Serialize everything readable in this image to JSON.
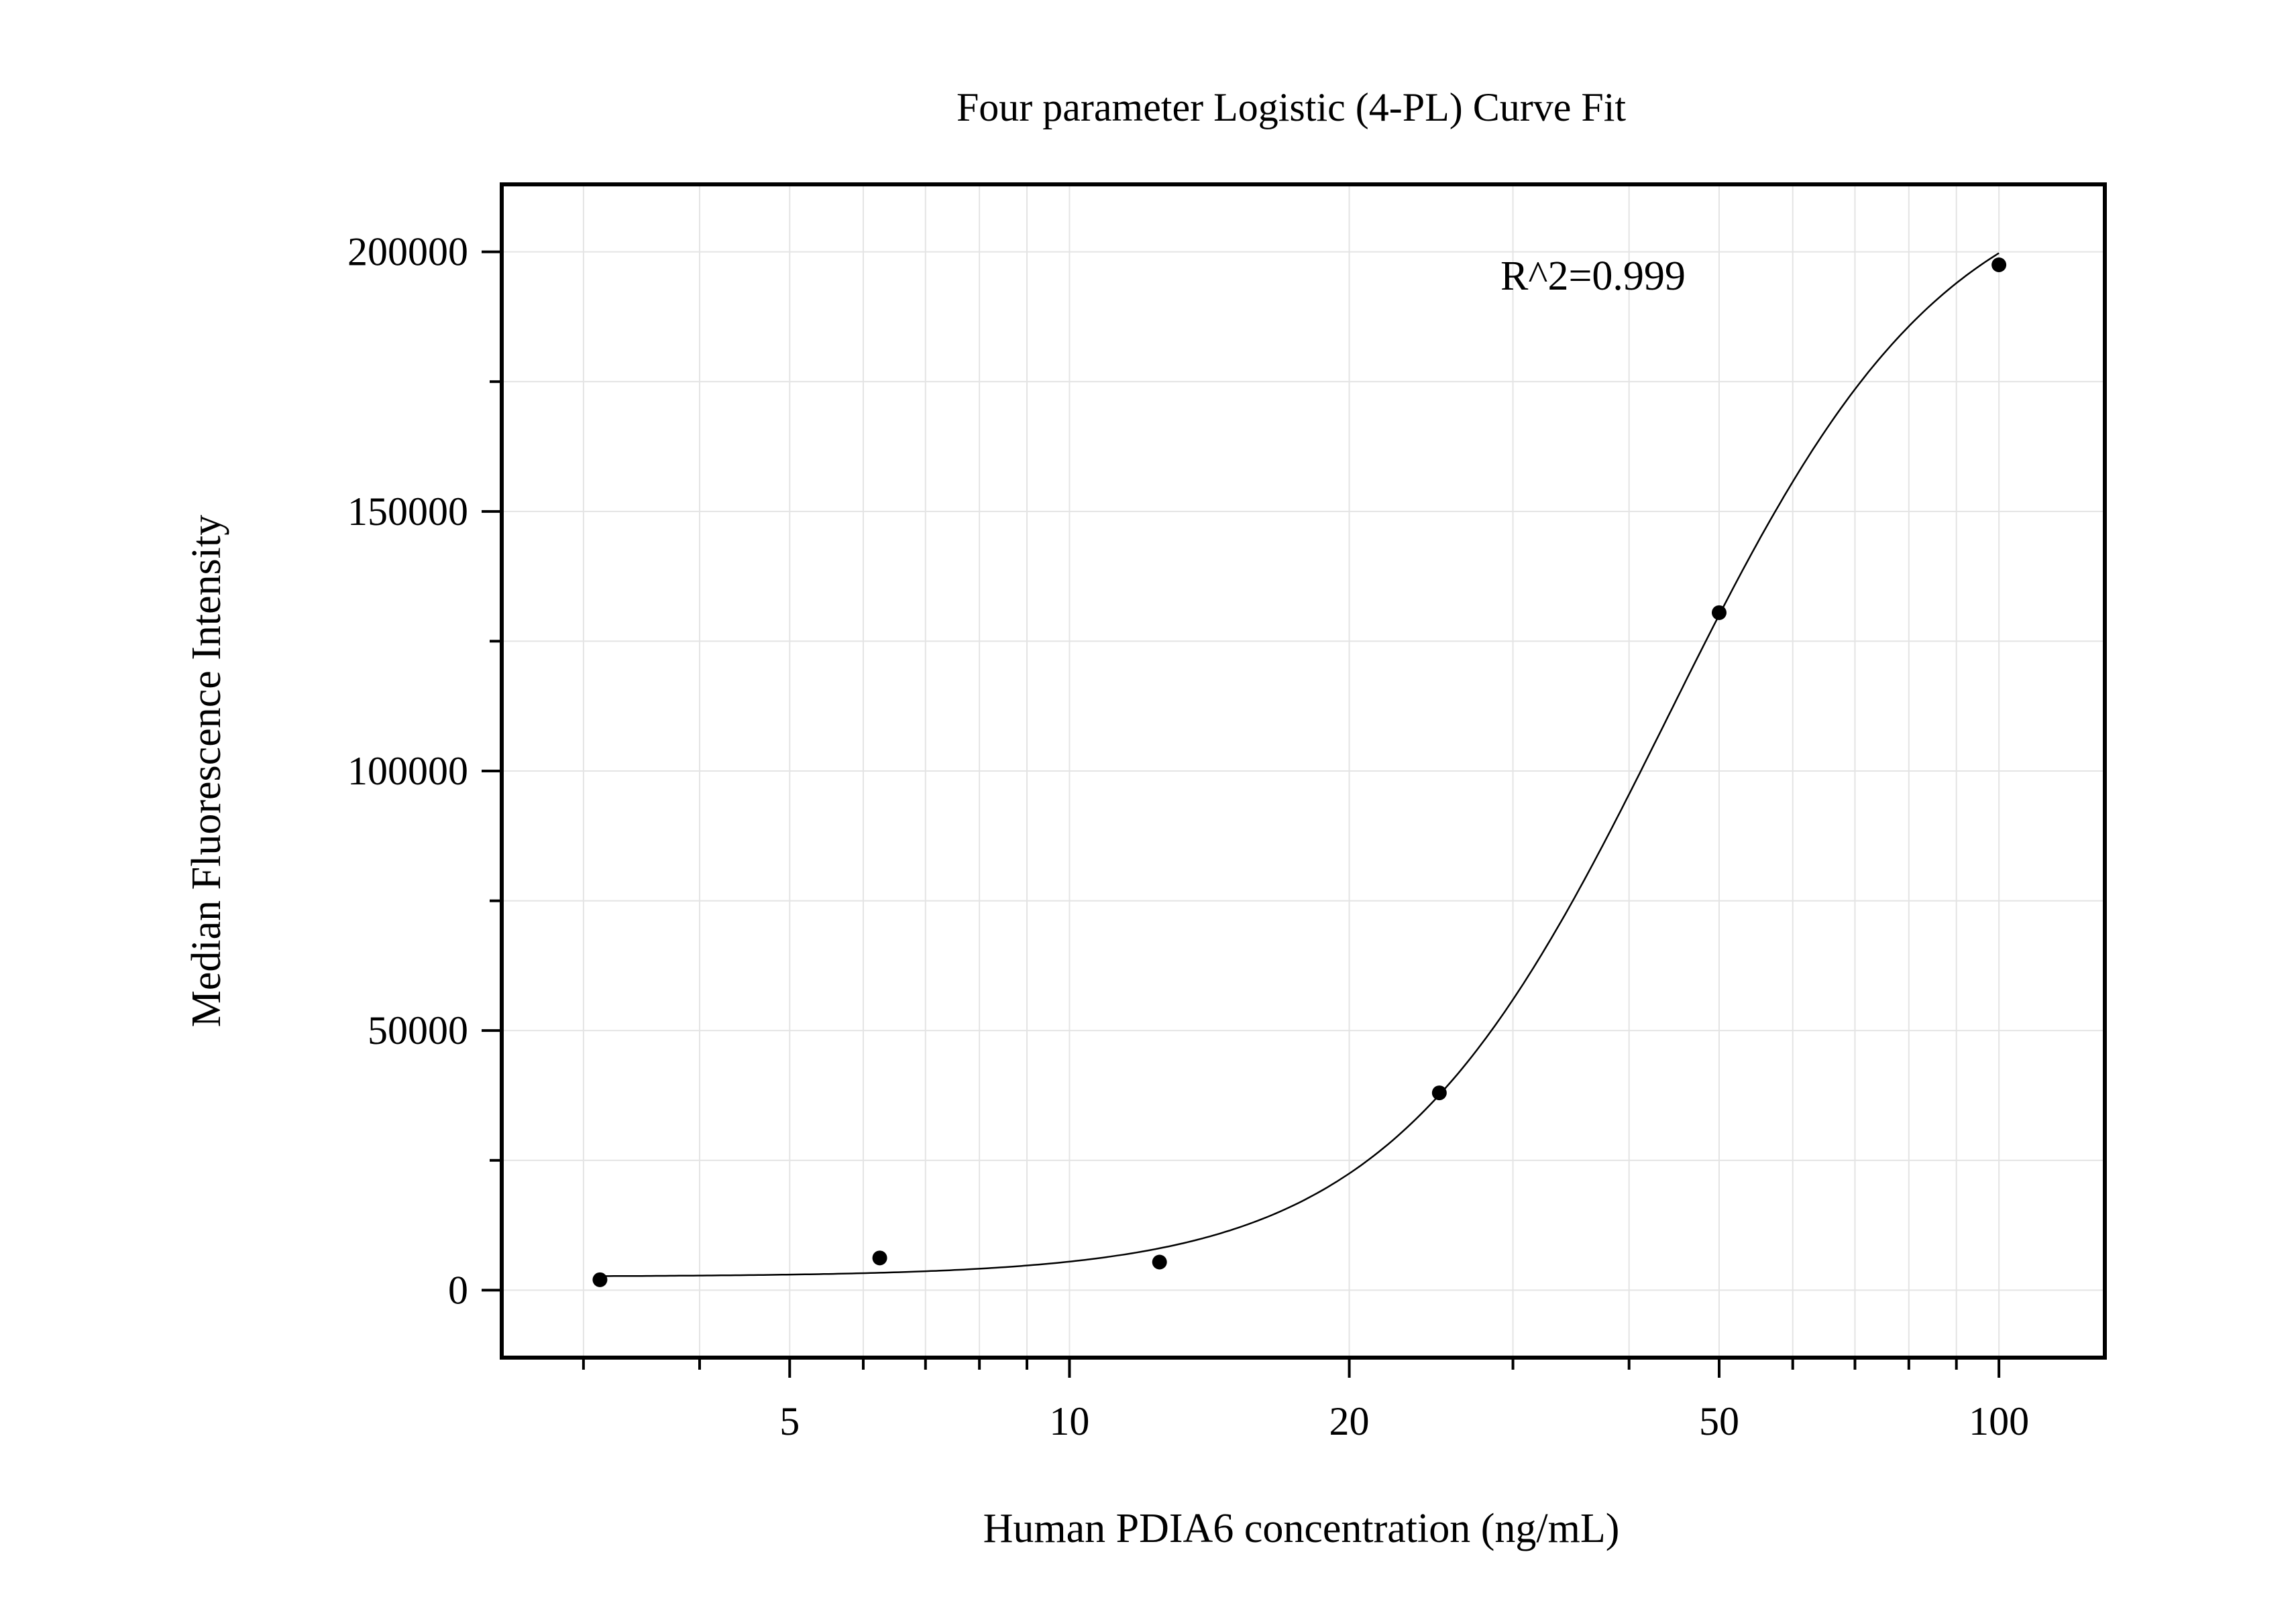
{
  "chart_data": {
    "type": "scatter",
    "title": "Four parameter Logistic (4-PL) Curve Fit",
    "xlabel": "Human PDIA6 concentration (ng/mL)",
    "ylabel": "Median Fluorescence Intensity",
    "x_scale": "log",
    "xlim": [
      2.45,
      130
    ],
    "ylim": [
      -13000,
      213000
    ],
    "x_ticks": [
      {
        "value": 5,
        "label": "5"
      },
      {
        "value": 10,
        "label": "10"
      },
      {
        "value": 20,
        "label": "20"
      },
      {
        "value": 50,
        "label": "50"
      },
      {
        "value": 100,
        "label": "100"
      }
    ],
    "y_ticks": [
      {
        "value": 0,
        "label": "0"
      },
      {
        "value": 50000,
        "label": "50000"
      },
      {
        "value": 100000,
        "label": "100000"
      },
      {
        "value": 150000,
        "label": "150000"
      },
      {
        "value": 200000,
        "label": "200000"
      }
    ],
    "grid": true,
    "points": [
      {
        "x": 3.125,
        "y": 2000
      },
      {
        "x": 6.25,
        "y": 6200
      },
      {
        "x": 12.5,
        "y": 5400
      },
      {
        "x": 25,
        "y": 38000
      },
      {
        "x": 50,
        "y": 130500
      },
      {
        "x": 100,
        "y": 197500
      }
    ],
    "fit": {
      "model": "4-PL",
      "bottom": 2600,
      "top": 218000,
      "ec50": 44,
      "hill": 2.9,
      "x_range": [
        3.125,
        100
      ]
    },
    "annotation": "R^2=0.999",
    "colors": {
      "points": "#000000",
      "curve": "#000000",
      "grid": "#e4e4e4",
      "frame": "#000000"
    }
  }
}
